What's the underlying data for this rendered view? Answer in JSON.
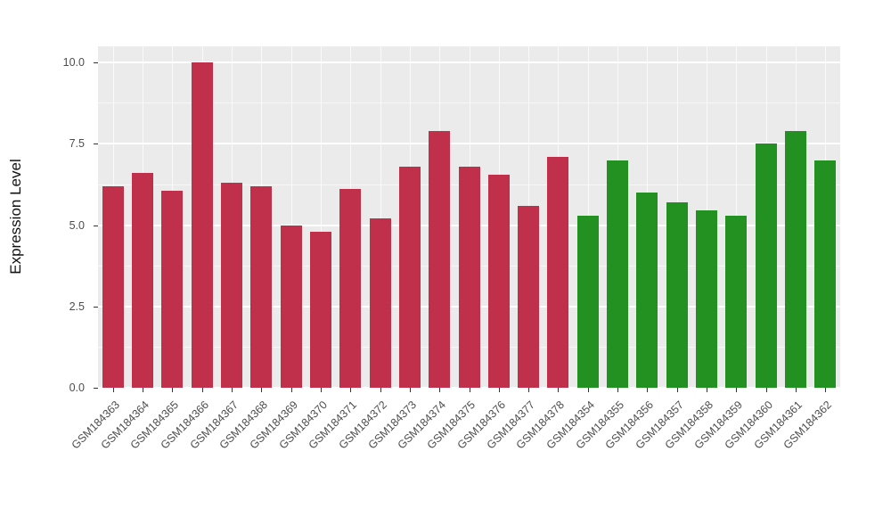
{
  "page": {
    "background": "#FFFFFF"
  },
  "chart_data": {
    "type": "bar",
    "title": "",
    "xlabel": "",
    "ylabel": "Expression Level",
    "ylim": [
      0,
      10.5
    ],
    "ytick_values": [
      0,
      2.5,
      5,
      7.5,
      10
    ],
    "ytick_labels": [
      "0.0",
      "2.5",
      "5.0",
      "7.5",
      "10.0"
    ],
    "minor_gridlines": [
      1.25,
      3.75,
      6.25,
      8.75
    ],
    "grid": "on",
    "legend": "none",
    "panel_background": "#EBEBEB",
    "gridline_color": "#FFFFFF",
    "palette": {
      "crimson": "#C0304A",
      "green": "#229122"
    },
    "categories": [
      "GSM184363",
      "GSM184364",
      "GSM184365",
      "GSM184366",
      "GSM184367",
      "GSM184368",
      "GSM184369",
      "GSM184370",
      "GSM184371",
      "GSM184372",
      "GSM184373",
      "GSM184374",
      "GSM184375",
      "GSM184376",
      "GSM184377",
      "GSM184378",
      "GSM184354",
      "GSM184355",
      "GSM184356",
      "GSM184357",
      "GSM184358",
      "GSM184359",
      "GSM184360",
      "GSM184361",
      "GSM184362"
    ],
    "values": [
      6.2,
      6.6,
      6.05,
      10.0,
      6.3,
      6.2,
      5.0,
      4.8,
      6.1,
      5.2,
      6.8,
      7.9,
      6.8,
      6.55,
      5.6,
      7.1,
      5.3,
      7.0,
      6.0,
      5.7,
      5.45,
      5.3,
      7.5,
      7.9,
      7.0
    ],
    "bar_colors": [
      "#C0304A",
      "#C0304A",
      "#C0304A",
      "#C0304A",
      "#C0304A",
      "#C0304A",
      "#C0304A",
      "#C0304A",
      "#C0304A",
      "#C0304A",
      "#C0304A",
      "#C0304A",
      "#C0304A",
      "#C0304A",
      "#C0304A",
      "#C0304A",
      "#229122",
      "#229122",
      "#229122",
      "#229122",
      "#229122",
      "#229122",
      "#229122",
      "#229122",
      "#229122"
    ]
  }
}
